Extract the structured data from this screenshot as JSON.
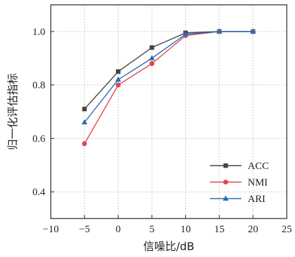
{
  "chart_data": {
    "type": "line",
    "xlabel": "信噪比/dB",
    "ylabel": "归一化评估指标",
    "xlim": [
      -10,
      25
    ],
    "ylim": [
      0.3,
      1.1
    ],
    "xticks": [
      -10,
      -5,
      0,
      5,
      10,
      15,
      20,
      25
    ],
    "xtick_labels": [
      "−10",
      "−5",
      "0",
      "5",
      "10",
      "15",
      "20",
      "25"
    ],
    "yticks": [
      0.4,
      0.6,
      0.8,
      1.0
    ],
    "ytick_labels": [
      "0.4",
      "0.6",
      "0.8",
      "1.0"
    ],
    "grid": true,
    "legend_position": "lower-right",
    "x": [
      -5,
      0,
      5,
      10,
      15,
      20
    ],
    "series": [
      {
        "name": "ACC",
        "values": [
          0.71,
          0.85,
          0.94,
          0.995,
          1.0,
          1.0
        ],
        "color": "#444444",
        "marker": "square"
      },
      {
        "name": "NMI",
        "values": [
          0.58,
          0.8,
          0.88,
          0.985,
          1.0,
          1.0
        ],
        "color": "#e0474c",
        "marker": "circle"
      },
      {
        "name": "ARI",
        "values": [
          0.66,
          0.82,
          0.9,
          0.99,
          1.0,
          1.0
        ],
        "color": "#2b6cb8",
        "marker": "triangle"
      }
    ]
  }
}
